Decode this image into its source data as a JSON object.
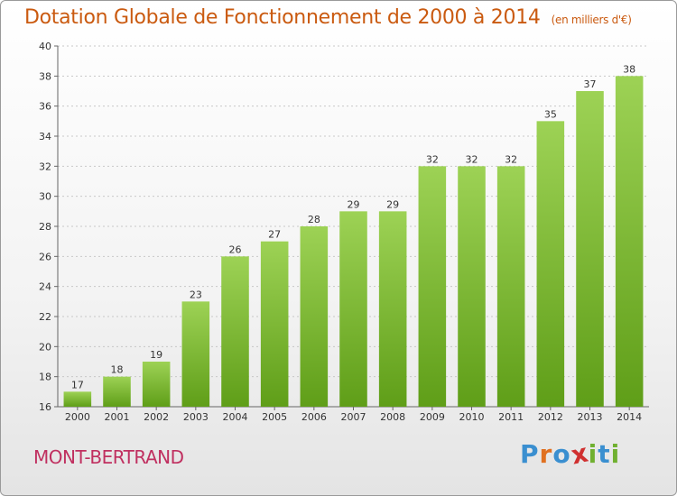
{
  "header": {
    "title": "Dotation Globale de Fonctionnement de 2000 à 2014",
    "unit_note": "(en milliers d'€)"
  },
  "footer": {
    "commune": "MONT-BERTRAND",
    "logo": "Proxiti",
    "logo_icon": "proxiti-logo",
    "logo_colors": [
      "#3a8fd0",
      "#e07020",
      "#3a8fd0",
      "#d03030",
      "#70b030",
      "#3a8fd0",
      "#70b030"
    ]
  },
  "colors": {
    "bar_light": "#9dd255",
    "bar_dark": "#5f9e18",
    "grid": "#c8c8c8",
    "title": "#ca5a10",
    "commune": "#c03060"
  },
  "chart_data": {
    "type": "bar",
    "categories": [
      "2000",
      "2001",
      "2002",
      "2003",
      "2004",
      "2005",
      "2006",
      "2007",
      "2008",
      "2009",
      "2010",
      "2011",
      "2012",
      "2013",
      "2014"
    ],
    "values": [
      17,
      18,
      19,
      23,
      26,
      27,
      28,
      29,
      29,
      32,
      32,
      32,
      35,
      37,
      38
    ],
    "title": "Dotation Globale de Fonctionnement de 2000 à 2014",
    "ylabel": "",
    "xlabel": "",
    "ylim": [
      16,
      40
    ],
    "yticks": [
      16,
      18,
      20,
      22,
      24,
      26,
      28,
      30,
      32,
      34,
      36,
      38,
      40
    ],
    "grid": true,
    "legend": "none"
  }
}
